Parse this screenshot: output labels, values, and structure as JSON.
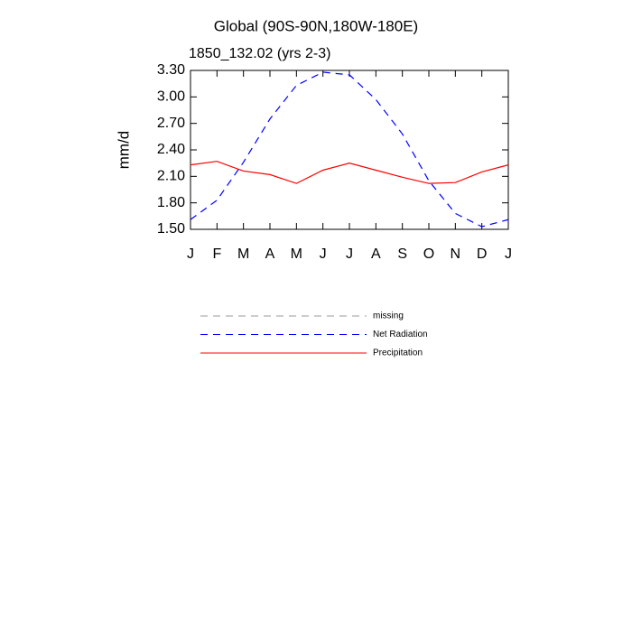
{
  "chart_data": {
    "type": "line",
    "title": "Global (90S-90N,180W-180E)",
    "subtitle": "1850_132.02 (yrs 2-3)",
    "y_label": "mm/d",
    "categories": [
      "J",
      "F",
      "M",
      "A",
      "M",
      "J",
      "J",
      "A",
      "S",
      "O",
      "N",
      "D",
      "J"
    ],
    "series": [
      {
        "name": "missing",
        "color": "#999999",
        "dash": true,
        "values": [
          null,
          null,
          null,
          null,
          null,
          null,
          null,
          null,
          null,
          null,
          null,
          null,
          null
        ]
      },
      {
        "name": "Net Radiation",
        "color": "#0000ff",
        "dash": true,
        "values": [
          1.61,
          1.83,
          2.26,
          2.75,
          3.13,
          3.28,
          3.25,
          2.97,
          2.58,
          2.05,
          1.68,
          1.53,
          1.61
        ]
      },
      {
        "name": "Precipitation",
        "color": "#ff0000",
        "dash": false,
        "values": [
          2.23,
          2.27,
          2.16,
          2.12,
          2.02,
          2.17,
          2.25,
          2.17,
          2.09,
          2.02,
          2.03,
          2.15,
          2.23
        ]
      }
    ],
    "ylim": [
      1.5,
      3.3
    ],
    "yticks": [
      {
        "value": 1.5,
        "label": "1.50"
      },
      {
        "value": 1.8,
        "label": "1.80"
      },
      {
        "value": 2.1,
        "label": "2.10"
      },
      {
        "value": 2.4,
        "label": "2.40"
      },
      {
        "value": 2.7,
        "label": "2.70"
      },
      {
        "value": 3.0,
        "label": "3.00"
      },
      {
        "value": 3.3,
        "label": "3.30"
      }
    ],
    "grid": false
  }
}
